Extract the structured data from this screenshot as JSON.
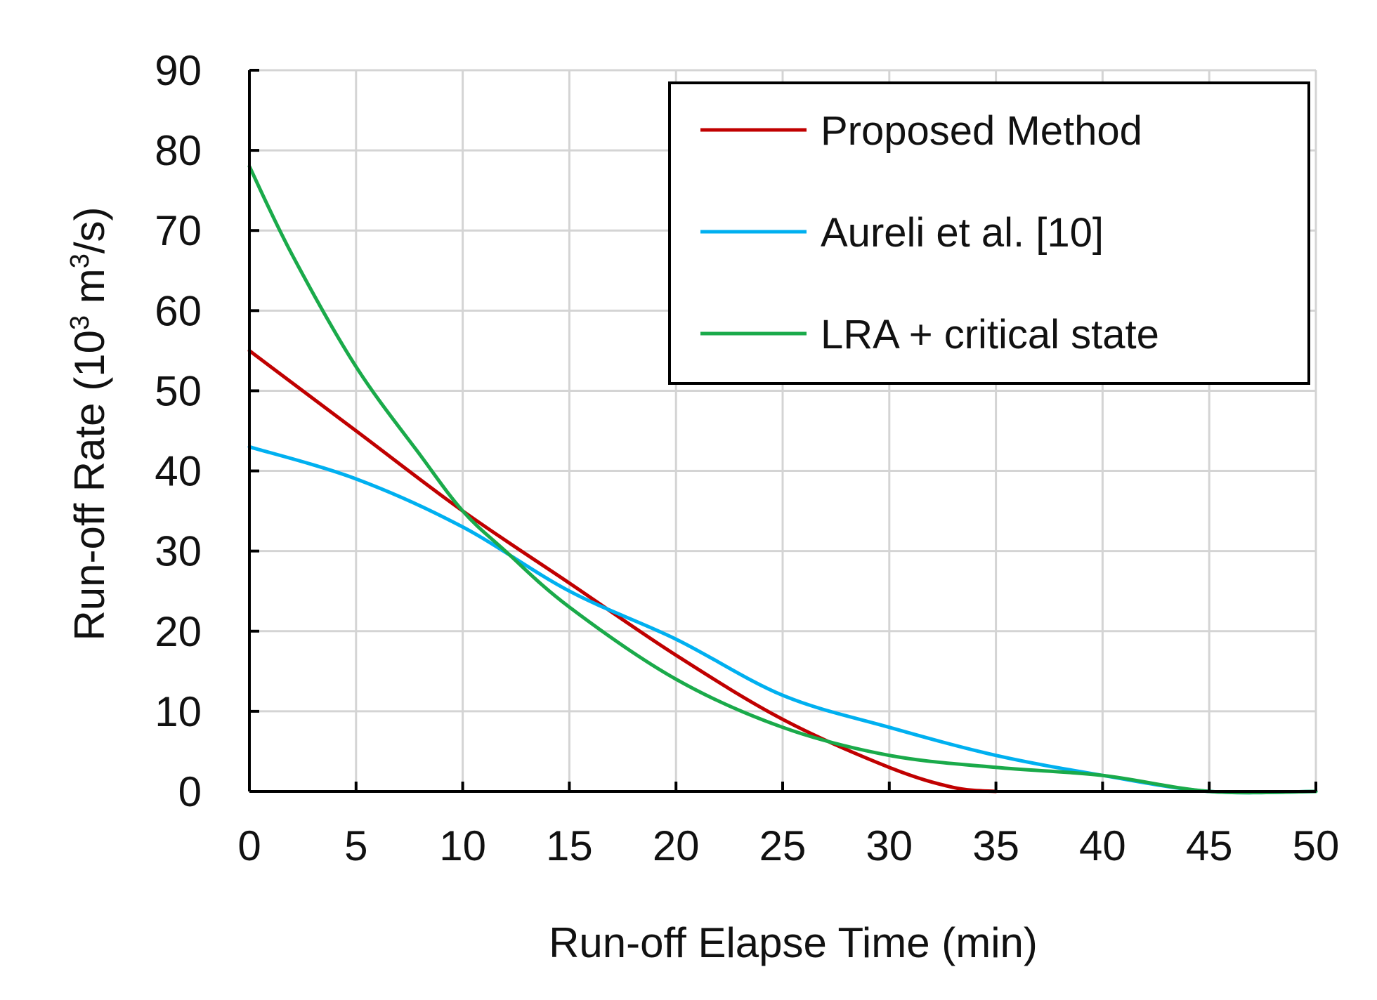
{
  "chart_data": {
    "type": "line",
    "xlabel": "Run-off Elapse Time (min)",
    "ylabel": {
      "prefix": "Run-off Rate (10",
      "sup1": "3",
      "middle": " m",
      "sup2": "3",
      "suffix": "/s)"
    },
    "xlim": [
      0,
      50
    ],
    "ylim": [
      0,
      90
    ],
    "xticks": [
      "0",
      "5",
      "10",
      "15",
      "20",
      "25",
      "30",
      "35",
      "40",
      "45",
      "50"
    ],
    "yticks": [
      "0",
      "10",
      "20",
      "30",
      "40",
      "50",
      "60",
      "70",
      "80",
      "90"
    ],
    "grid": true,
    "legend_position": "top-right",
    "series": [
      {
        "name": "Proposed Method",
        "color": "#c00000",
        "x": [
          0,
          5,
          10,
          15,
          20,
          25,
          30,
          33,
          35
        ],
        "y": [
          55,
          45,
          35,
          26,
          17,
          9,
          3,
          0.5,
          0
        ]
      },
      {
        "name": "Aureli et al. [10]",
        "color": "#00b0f0",
        "x": [
          0,
          5,
          10,
          15,
          20,
          25,
          30,
          35,
          40,
          45,
          50
        ],
        "y": [
          43,
          39,
          33,
          25,
          19,
          12,
          8,
          4.5,
          2,
          0,
          0
        ]
      },
      {
        "name": "LRA + critical state",
        "color": "#1aaa4a",
        "x": [
          0,
          2,
          5,
          8,
          10,
          12,
          15,
          20,
          25,
          30,
          35,
          40,
          45,
          50
        ],
        "y": [
          78,
          67,
          53,
          42,
          35,
          30,
          23,
          14,
          8,
          4.5,
          3,
          2,
          0,
          0
        ]
      }
    ]
  }
}
